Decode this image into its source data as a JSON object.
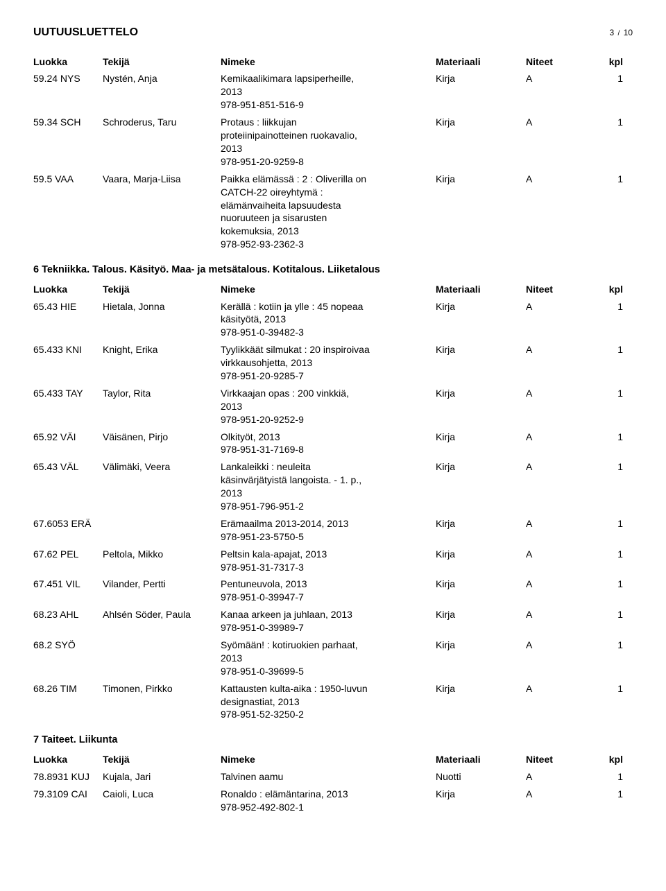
{
  "docTitle": "UUTUUSLUETTELO",
  "pageNumber": "3",
  "pageSep": "/",
  "pageTotal": "10",
  "columnLabels": {
    "luokka": "Luokka",
    "tekija": "Tekijä",
    "nimeke": "Nimeke",
    "materiaali": "Materiaali",
    "niteet": "Niteet",
    "kpl": "kpl"
  },
  "sections": [
    {
      "title": "",
      "rows": [
        {
          "luokka": "59.24 NYS",
          "tekija": "Nystén, Anja",
          "nimeke": "Kemikaalikimara lapsiperheille,\n2013\n978-951-851-516-9",
          "materiaali": "Kirja",
          "niteet": "A",
          "kpl": "1"
        },
        {
          "luokka": "59.34 SCH",
          "tekija": "Schroderus, Taru",
          "nimeke": "Protaus : liikkujan\nproteiinipainotteinen ruokavalio,\n2013\n978-951-20-9259-8",
          "materiaali": "Kirja",
          "niteet": "A",
          "kpl": "1"
        },
        {
          "luokka": "59.5 VAA",
          "tekija": "Vaara, Marja-Liisa",
          "nimeke": "Paikka elämässä : 2 : Oliverilla on\nCATCH-22 oireyhtymä :\nelämänvaiheita lapsuudesta\nnuoruuteen ja sisarusten\nkokemuksia, 2013\n978-952-93-2362-3",
          "materiaali": "Kirja",
          "niteet": "A",
          "kpl": "1"
        }
      ]
    },
    {
      "title": "6 Tekniikka. Talous. Käsityö. Maa- ja metsätalous. Kotitalous. Liiketalous",
      "rows": [
        {
          "luokka": "65.43 HIE",
          "tekija": "Hietala, Jonna",
          "nimeke": "Kerällä : kotiin ja ylle : 45 nopeaa\nkäsityötä, 2013\n978-951-0-39482-3",
          "materiaali": "Kirja",
          "niteet": "A",
          "kpl": "1"
        },
        {
          "luokka": "65.433 KNI",
          "tekija": "Knight, Erika",
          "nimeke": "Tyylikkäät silmukat : 20 inspiroivaa\nvirkkausohjetta, 2013\n978-951-20-9285-7",
          "materiaali": "Kirja",
          "niteet": "A",
          "kpl": "1"
        },
        {
          "luokka": "65.433 TAY",
          "tekija": "Taylor, Rita",
          "nimeke": "Virkkaajan opas : 200 vinkkiä,\n2013\n978-951-20-9252-9",
          "materiaali": "Kirja",
          "niteet": "A",
          "kpl": "1"
        },
        {
          "luokka": "65.92 VÄI",
          "tekija": "Väisänen, Pirjo",
          "nimeke": "Olkityöt, 2013\n978-951-31-7169-8",
          "materiaali": "Kirja",
          "niteet": "A",
          "kpl": "1"
        },
        {
          "luokka": "65.43 VÄL",
          "tekija": "Välimäki, Veera",
          "nimeke": "Lankaleikki : neuleita\nkäsinvärjätyistä langoista. - 1. p.,\n2013\n978-951-796-951-2",
          "materiaali": "Kirja",
          "niteet": "A",
          "kpl": "1"
        },
        {
          "luokka": "67.6053 ERÄ",
          "tekija": "",
          "nimeke": "Erämaailma 2013-2014, 2013\n978-951-23-5750-5",
          "materiaali": "Kirja",
          "niteet": "A",
          "kpl": "1"
        },
        {
          "luokka": "67.62 PEL",
          "tekija": "Peltola, Mikko",
          "nimeke": "Peltsin kala-apajat, 2013\n978-951-31-7317-3",
          "materiaali": "Kirja",
          "niteet": "A",
          "kpl": "1"
        },
        {
          "luokka": "67.451 VIL",
          "tekija": "Vilander, Pertti",
          "nimeke": "Pentuneuvola, 2013\n978-951-0-39947-7",
          "materiaali": "Kirja",
          "niteet": "A",
          "kpl": "1"
        },
        {
          "luokka": "68.23 AHL",
          "tekija": "Ahlsén Söder, Paula",
          "nimeke": "Kanaa arkeen ja juhlaan, 2013\n978-951-0-39989-7",
          "materiaali": "Kirja",
          "niteet": "A",
          "kpl": "1"
        },
        {
          "luokka": "68.2 SYÖ",
          "tekija": "",
          "nimeke": "Syömään! : kotiruokien parhaat,\n2013\n978-951-0-39699-5",
          "materiaali": "Kirja",
          "niteet": "A",
          "kpl": "1"
        },
        {
          "luokka": "68.26 TIM",
          "tekija": "Timonen, Pirkko",
          "nimeke": "Kattausten kulta-aika : 1950-luvun\ndesignastiat, 2013\n978-951-52-3250-2",
          "materiaali": "Kirja",
          "niteet": "A",
          "kpl": "1"
        }
      ]
    },
    {
      "title": "7 Taiteet. Liikunta",
      "rows": [
        {
          "luokka": "78.8931 KUJ",
          "tekija": "Kujala, Jari",
          "nimeke": "Talvinen aamu",
          "materiaali": "Nuotti",
          "niteet": "A",
          "kpl": "1"
        },
        {
          "luokka": "79.3109 CAI",
          "tekija": "Caioli, Luca",
          "nimeke": "Ronaldo : elämäntarina, 2013\n978-952-492-802-1",
          "materiaali": "Kirja",
          "niteet": "A",
          "kpl": "1"
        }
      ]
    }
  ]
}
